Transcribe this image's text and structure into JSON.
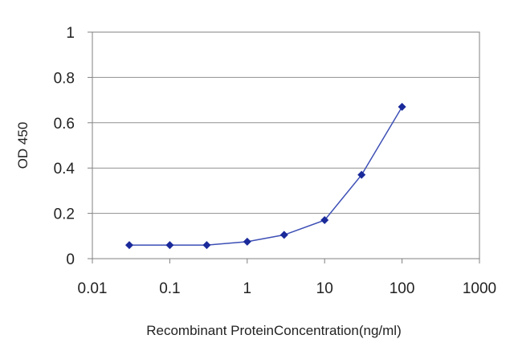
{
  "chart_data": {
    "type": "line",
    "title": "",
    "xlabel": "Recombinant ProteinConcentration(ng/ml)",
    "ylabel": "OD 450",
    "xscale": "log",
    "xlim": [
      0.01,
      1000
    ],
    "ylim": [
      0,
      1
    ],
    "x_ticks": [
      0.01,
      0.1,
      1,
      10,
      100,
      1000
    ],
    "x_tick_labels": [
      "0.01",
      "0.1",
      "1",
      "10",
      "100",
      "1000"
    ],
    "y_ticks": [
      0,
      0.2,
      0.4,
      0.6,
      0.8,
      1
    ],
    "y_tick_labels": [
      "0",
      "0.2",
      "0.4",
      "0.6",
      "0.8",
      "1"
    ],
    "grid": "horizontal",
    "legend": "none",
    "series": [
      {
        "color": "#3d4fb5",
        "marker": "diamond",
        "marker_color": "#1a2a9a",
        "x": [
          0.03,
          0.1,
          0.3,
          1,
          3,
          10,
          30,
          100
        ],
        "y": [
          0.06,
          0.06,
          0.06,
          0.075,
          0.105,
          0.17,
          0.37,
          0.67
        ]
      }
    ]
  }
}
